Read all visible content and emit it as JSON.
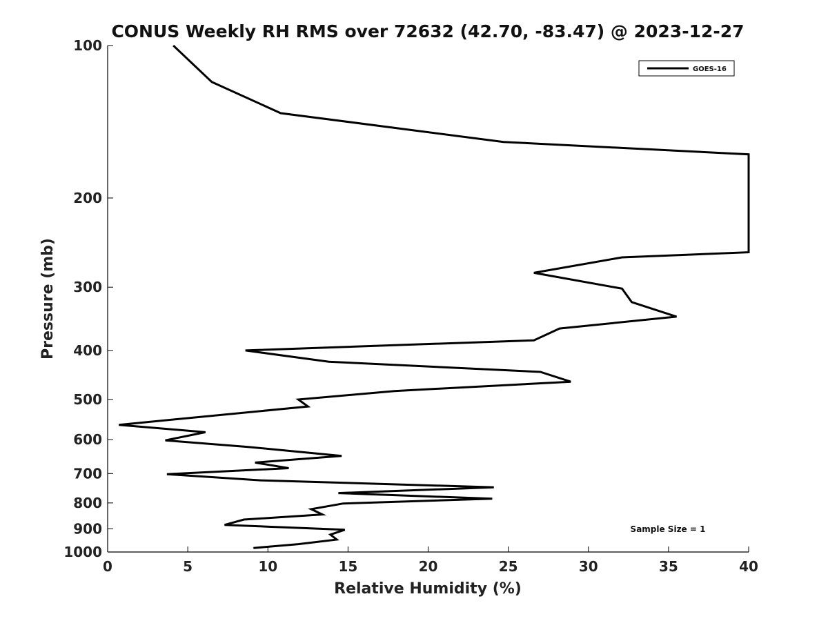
{
  "chart_data": {
    "type": "line",
    "title": "CONUS Weekly RH RMS over 72632 (42.70, -83.47) @ 2023-12-27",
    "xlabel": "Relative Humidity (%)",
    "ylabel": "Pressure (mb)",
    "xlim": [
      0,
      40
    ],
    "ylim": [
      1000,
      100
    ],
    "yscale": "log",
    "y_reversed": true,
    "grid": false,
    "legend_position": "top-right",
    "x_ticks": [
      "0",
      "5",
      "10",
      "15",
      "20",
      "25",
      "30",
      "35",
      "40"
    ],
    "y_ticks": [
      "100",
      "200",
      "300",
      "400",
      "500",
      "600",
      "700",
      "800",
      "900",
      "1000"
    ],
    "annotation": "Sample Size = 1",
    "series": [
      {
        "name": "GOES-16",
        "color": "#000000",
        "points": [
          [
            4.1,
            100
          ],
          [
            6.5,
            118
          ],
          [
            10.8,
            136
          ],
          [
            24.7,
            155
          ],
          [
            40.0,
            164
          ],
          [
            40.0,
            256
          ],
          [
            32.1,
            262
          ],
          [
            26.6,
            281
          ],
          [
            32.1,
            302
          ],
          [
            32.7,
            321
          ],
          [
            35.5,
            343
          ],
          [
            28.2,
            362
          ],
          [
            26.6,
            382
          ],
          [
            8.6,
            400
          ],
          [
            13.8,
            421
          ],
          [
            27.0,
            441
          ],
          [
            28.9,
            461
          ],
          [
            17.9,
            481
          ],
          [
            11.9,
            500
          ],
          [
            12.5,
            516
          ],
          [
            0.7,
            561
          ],
          [
            6.1,
            580
          ],
          [
            3.6,
            602
          ],
          [
            8.7,
            620
          ],
          [
            14.6,
            646
          ],
          [
            9.2,
            666
          ],
          [
            11.3,
            683
          ],
          [
            3.7,
            702
          ],
          [
            9.6,
            722
          ],
          [
            24.1,
            745
          ],
          [
            14.4,
            765
          ],
          [
            24.0,
            785
          ],
          [
            14.7,
            802
          ],
          [
            12.7,
            823
          ],
          [
            13.4,
            843
          ],
          [
            8.5,
            863
          ],
          [
            7.3,
            884
          ],
          [
            14.8,
            904
          ],
          [
            13.9,
            924
          ],
          [
            14.3,
            945
          ],
          [
            11.9,
            965
          ],
          [
            9.1,
            982
          ]
        ]
      }
    ]
  }
}
